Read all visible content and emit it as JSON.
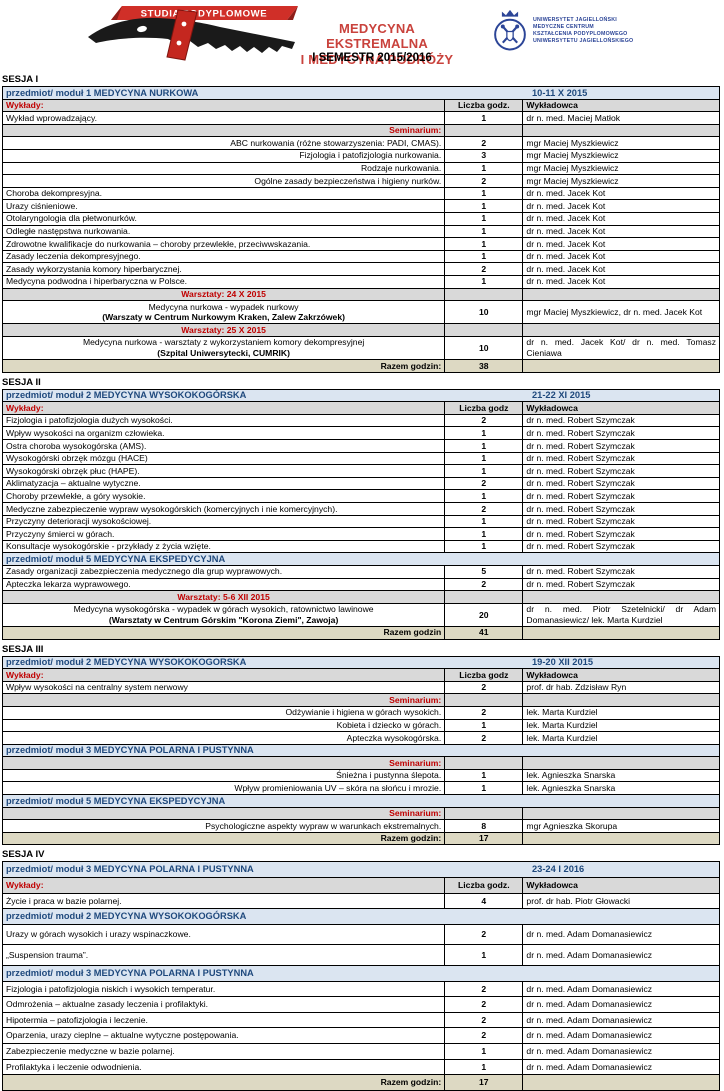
{
  "header": {
    "banner_label": "STUDIA PODYPLOMOWE",
    "program_title_line1": "MEDYCYNA EKSTREMALNA",
    "program_title_line2": "I MEDYCYNA PODRÓŻY",
    "university_logo_lines": [
      "UNIWERSYTET JAGIELLOŃSKI",
      "MEDYCZNE CENTRUM",
      "KSZTAŁCENIA PODYPLOMOWEGO",
      "UNIWERSYTETU JAGIELLOŃSKIEGO"
    ],
    "semester_title": "I SEMESTR 2015/2016"
  },
  "colors": {
    "module_band_bg": "#dbe5f1",
    "module_text": "#1f497d",
    "section_red": "#c00000",
    "subheader_bg": "#d9d9d9",
    "total_bg": "#ddd9c3",
    "banner_red": "#d02f28",
    "title_red": "#c9423c",
    "crest_blue": "#2c4597"
  },
  "sessions": [
    {
      "label": "SESJA I",
      "blocks": [
        {
          "type": "module",
          "text": "przedmiot/ moduł 1 MEDYCYNA NURKOWA",
          "date": "10-11 X 2015"
        },
        {
          "type": "colheader",
          "col1": "Wykłady:",
          "col2": "Liczba godz.",
          "col3": "Wykładowca"
        },
        {
          "type": "row",
          "align": "left",
          "title": "Wykład wprowadzający.",
          "hours": "1",
          "lecturer": "dr n. med. Maciej Matłok"
        },
        {
          "type": "subheader",
          "text": "Seminarium:",
          "align": "right"
        },
        {
          "type": "row",
          "align": "right",
          "title": "ABC nurkowania (różne stowarzyszenia: PADI, CMAS).",
          "hours": "2",
          "lecturer": "mgr Maciej Myszkiewicz"
        },
        {
          "type": "row",
          "align": "right",
          "title": "Fizjologia i patofizjologia nurkowania.",
          "hours": "3",
          "lecturer": "mgr Maciej Myszkiewicz"
        },
        {
          "type": "row",
          "align": "right",
          "title": "Rodzaje nurkowania.",
          "hours": "1",
          "lecturer": "mgr Maciej Myszkiewicz"
        },
        {
          "type": "row",
          "align": "right",
          "title": "Ogólne zasady bezpieczeństwa i higieny nurków.",
          "hours": "2",
          "lecturer": "mgr Maciej Myszkiewicz"
        },
        {
          "type": "row",
          "align": "left",
          "title": "Choroba dekompresyjna.",
          "hours": "1",
          "lecturer": "dr n. med. Jacek Kot"
        },
        {
          "type": "row",
          "align": "left",
          "title": "Urazy ciśnieniowe.",
          "hours": "1",
          "lecturer": "dr n. med. Jacek Kot"
        },
        {
          "type": "row",
          "align": "left",
          "title": "Otolaryngologia dla płetwonurków.",
          "hours": "1",
          "lecturer": "dr n. med. Jacek Kot"
        },
        {
          "type": "row",
          "align": "left",
          "title": "Odległe następstwa nurkowania.",
          "hours": "1",
          "lecturer": "dr n. med. Jacek Kot"
        },
        {
          "type": "row",
          "align": "left",
          "title": "Zdrowotne kwalifikacje do nurkowania – choroby przewlekłe, przeciwwskazania.",
          "hours": "1",
          "lecturer": "dr n. med. Jacek Kot"
        },
        {
          "type": "row",
          "align": "left",
          "title": "Zasady leczenia dekompresyjnego.",
          "hours": "1",
          "lecturer": "dr n. med. Jacek Kot"
        },
        {
          "type": "row",
          "align": "left",
          "title": "Zasady wykorzystania komory hiperbarycznej.",
          "hours": "2",
          "lecturer": "dr n. med. Jacek Kot"
        },
        {
          "type": "row",
          "align": "left",
          "title": "Medycyna podwodna i hiperbaryczna w Polsce.",
          "hours": "1",
          "lecturer": "dr n. med. Jacek Kot"
        },
        {
          "type": "subheader",
          "text": "Warsztaty: 24 X 2015",
          "align": "center"
        },
        {
          "type": "workshop",
          "line1": "Medycyna nurkowa - wypadek nurkowy",
          "line2": "(Warszaty w Centrum Nurkowym Kraken, Zalew Zakrzówek)",
          "hours": "10",
          "lecturer": "mgr Maciej Myszkiewicz, dr n. med. Jacek Kot"
        },
        {
          "type": "subheader",
          "text": "Warsztaty: 25 X 2015",
          "align": "center"
        },
        {
          "type": "workshop",
          "line1": "Medycyna nurkowa - warsztaty z wykorzystaniem komory dekompresyjnej",
          "line2": "(Szpital Uniwersytecki, CUMRIK)",
          "hours": "10",
          "lecturer": "dr n. med. Jacek Kot/ dr n. med. Tomasz Cieniawa"
        },
        {
          "type": "total",
          "label": "Razem godzin:",
          "hours": "38"
        }
      ]
    },
    {
      "label": "SESJA II",
      "blocks": [
        {
          "type": "module",
          "text": "przedmiot/ moduł 2 MEDYCYNA WYSOKOKOGÓRSKA",
          "date": "21-22 XI 2015"
        },
        {
          "type": "colheader",
          "col1": "Wykłady:",
          "col2": "Liczba godz",
          "col3": "Wykładowca"
        },
        {
          "type": "row",
          "align": "left",
          "title": "Fizjologia i patofizjologia dużych wysokości.",
          "hours": "2",
          "lecturer": "dr n. med. Robert Szymczak"
        },
        {
          "type": "row",
          "align": "left",
          "title": "Wpływ wysokości na organizm człowieka.",
          "hours": "1",
          "lecturer": "dr n. med. Robert Szymczak"
        },
        {
          "type": "row",
          "align": "left",
          "title": "Ostra choroba wysokogórska (AMS).",
          "hours": "1",
          "lecturer": "dr n. med. Robert Szymczak"
        },
        {
          "type": "row",
          "align": "left",
          "title": "Wysokogórski obrzęk mózgu (HACE)",
          "hours": "1",
          "lecturer": "dr n. med. Robert Szymczak"
        },
        {
          "type": "row",
          "align": "left",
          "title": "Wysokogórski obrzęk płuc (HAPE).",
          "hours": "1",
          "lecturer": "dr n. med. Robert Szymczak"
        },
        {
          "type": "row",
          "align": "left",
          "title": "Aklimatyzacja – aktualne wytyczne.",
          "hours": "2",
          "lecturer": "dr n. med. Robert Szymczak"
        },
        {
          "type": "row",
          "align": "left",
          "title": "Choroby przewlekłe, a góry wysokie.",
          "hours": "1",
          "lecturer": "dr n. med. Robert Szymczak"
        },
        {
          "type": "row",
          "align": "left",
          "title": "Medyczne zabezpieczenie wypraw wysokogórskich (komercyjnych i nie komercyjnych).",
          "hours": "2",
          "lecturer": "dr n. med. Robert Szymczak"
        },
        {
          "type": "row",
          "align": "left",
          "title": "Przyczyny deterioracji wysokościowej.",
          "hours": "1",
          "lecturer": "dr n. med. Robert Szymczak"
        },
        {
          "type": "row",
          "align": "left",
          "title": "Przyczyny śmierci w górach.",
          "hours": "1",
          "lecturer": "dr n. med. Robert Szymczak"
        },
        {
          "type": "row",
          "align": "left",
          "title": "Konsultacje wysokogórskie - przykłady z życia wzięte.",
          "hours": "1",
          "lecturer": "dr n. med. Robert Szymczak"
        },
        {
          "type": "module",
          "text": "przedmiot/ moduł 5 MEDYCYNA EKSPEDYCYJNA"
        },
        {
          "type": "row",
          "align": "left",
          "title": "Zasady organizacji zabezpieczenia medycznego dla grup wyprawowych.",
          "hours": "5",
          "lecturer": "dr n. med. Robert Szymczak"
        },
        {
          "type": "row",
          "align": "left",
          "title": "Apteczka lekarza wyprawowego.",
          "hours": "2",
          "lecturer": "dr n. med. Robert Szymczak"
        },
        {
          "type": "subheader",
          "text": "Warsztaty: 5-6 XII 2015",
          "align": "center"
        },
        {
          "type": "workshop",
          "line1": "Medycyna wysokogórska - wypadek w górach wysokich, ratownictwo lawinowe",
          "line2": "(Warsztaty w Centrum Górskim \"Korona Ziemi\", Zawoja)",
          "hours": "20",
          "lecturer": "dr n. med. Piotr Szetelnicki/ dr Adam Domanasiewicz/ lek. Marta Kurdziel"
        },
        {
          "type": "total",
          "label": "Razem godzin",
          "hours": "41"
        }
      ]
    },
    {
      "label": "SESJA III",
      "blocks": [
        {
          "type": "module",
          "text": "przedmiot/ moduł 2 MEDYCYNA WYSOKOKOGORSKA",
          "date": "19-20 XII 2015"
        },
        {
          "type": "colheader",
          "col1": "Wykłady:",
          "col2": "Liczba godz",
          "col3": "Wykładowca"
        },
        {
          "type": "row",
          "align": "left",
          "title": "Wpływ wysokości na centralny system nerwowy",
          "hours": "2",
          "lecturer": "prof. dr hab. Zdzisław Ryn"
        },
        {
          "type": "subheader",
          "text": "Seminarium:",
          "align": "right"
        },
        {
          "type": "row",
          "align": "right",
          "title": "Odżywianie i higiena w górach wysokich.",
          "hours": "2",
          "lecturer": "lek. Marta Kurdziel"
        },
        {
          "type": "row",
          "align": "right",
          "title": "Kobieta i dziecko w górach.",
          "hours": "1",
          "lecturer": "lek. Marta Kurdziel"
        },
        {
          "type": "row",
          "align": "right",
          "title": "Apteczka wysokogórska.",
          "hours": "2",
          "lecturer": "lek. Marta Kurdziel"
        },
        {
          "type": "module",
          "text": "przedmiot/ moduł 3 MEDYCYNA POLARNA I PUSTYNNA"
        },
        {
          "type": "subheader",
          "text": "Seminarium:",
          "align": "right"
        },
        {
          "type": "row",
          "align": "right",
          "title": "Śnieżna i pustynna ślepota.",
          "hours": "1",
          "lecturer": "lek. Agnieszka Snarska"
        },
        {
          "type": "row",
          "align": "right",
          "title": "Wpływ promieniowania UV – skóra na słońcu i mrozie.",
          "hours": "1",
          "lecturer": "lek. Agnieszka Snarska"
        },
        {
          "type": "module",
          "text": "przedmiot/ moduł 5 MEDYCYNA EKSPEDYCYJNA"
        },
        {
          "type": "subheader",
          "text": "Seminarium:",
          "align": "right"
        },
        {
          "type": "row",
          "align": "right",
          "title": "Psychologiczne aspekty wypraw w warunkach ekstremalnych.",
          "hours": "8",
          "lecturer": "mgr Agnieszka Skorupa"
        },
        {
          "type": "total",
          "label": "Razem godzin:",
          "hours": "17"
        }
      ]
    },
    {
      "label": "SESJA IV",
      "pad": true,
      "blocks": [
        {
          "type": "module",
          "text": "przedmiot/ moduł 3 MEDYCYNA POLARNA I PUSTYNNA",
          "date": "23-24 I 2016"
        },
        {
          "type": "colheader",
          "col1": "Wykłady:",
          "col2": "Liczba godz.",
          "col3": "Wykładowca"
        },
        {
          "type": "row",
          "align": "left",
          "title": "Życie i praca w bazie polarnej.",
          "hours": "4",
          "lecturer": "prof. dr hab. Piotr Głowacki"
        },
        {
          "type": "module",
          "text": "przedmiot/ moduł 2 MEDYCYNA WYSOKOKOGÓRSKA"
        },
        {
          "type": "row",
          "align": "left",
          "tall": true,
          "title": "Urazy w górach wysokich i urazy wspinaczkowe.",
          "hours": "2",
          "lecturer": "dr n. med. Adam Domanasiewicz"
        },
        {
          "type": "row",
          "align": "left",
          "tall": true,
          "title": "„Suspension trauma”.",
          "hours": "1",
          "lecturer": "dr n. med. Adam Domanasiewicz"
        },
        {
          "type": "module",
          "text": "przedmiot/ moduł 3 MEDYCYNA POLARNA I PUSTYNNA"
        },
        {
          "type": "row",
          "align": "left",
          "title": "Fizjologia i patofizjologia niskich i wysokich temperatur.",
          "hours": "2",
          "lecturer": "dr n. med. Adam Domanasiewicz"
        },
        {
          "type": "row",
          "align": "left",
          "title": "Odmrożenia – aktualne zasady leczenia i profilaktyki.",
          "hours": "2",
          "lecturer": "dr n. med. Adam Domanasiewicz"
        },
        {
          "type": "row",
          "align": "left",
          "title": "Hipotermia – patofizjologia i leczenie.",
          "hours": "2",
          "lecturer": "dr n. med. Adam Domanasiewicz"
        },
        {
          "type": "row",
          "align": "left",
          "title": "Oparzenia, urazy cieplne – aktualne wytyczne postępowania.",
          "hours": "2",
          "lecturer": "dr n. med. Adam Domanasiewicz"
        },
        {
          "type": "row",
          "align": "left",
          "title": "Zabezpieczenie medyczne w bazie polarnej.",
          "hours": "1",
          "lecturer": "dr n. med. Adam Domanasiewicz"
        },
        {
          "type": "row",
          "align": "left",
          "title": "Profilaktyka i leczenie odwodnienia.",
          "hours": "1",
          "lecturer": "dr n. med. Adam Domanasiewicz"
        },
        {
          "type": "total",
          "label": "Razem godzin:",
          "hours": "17"
        }
      ]
    }
  ]
}
